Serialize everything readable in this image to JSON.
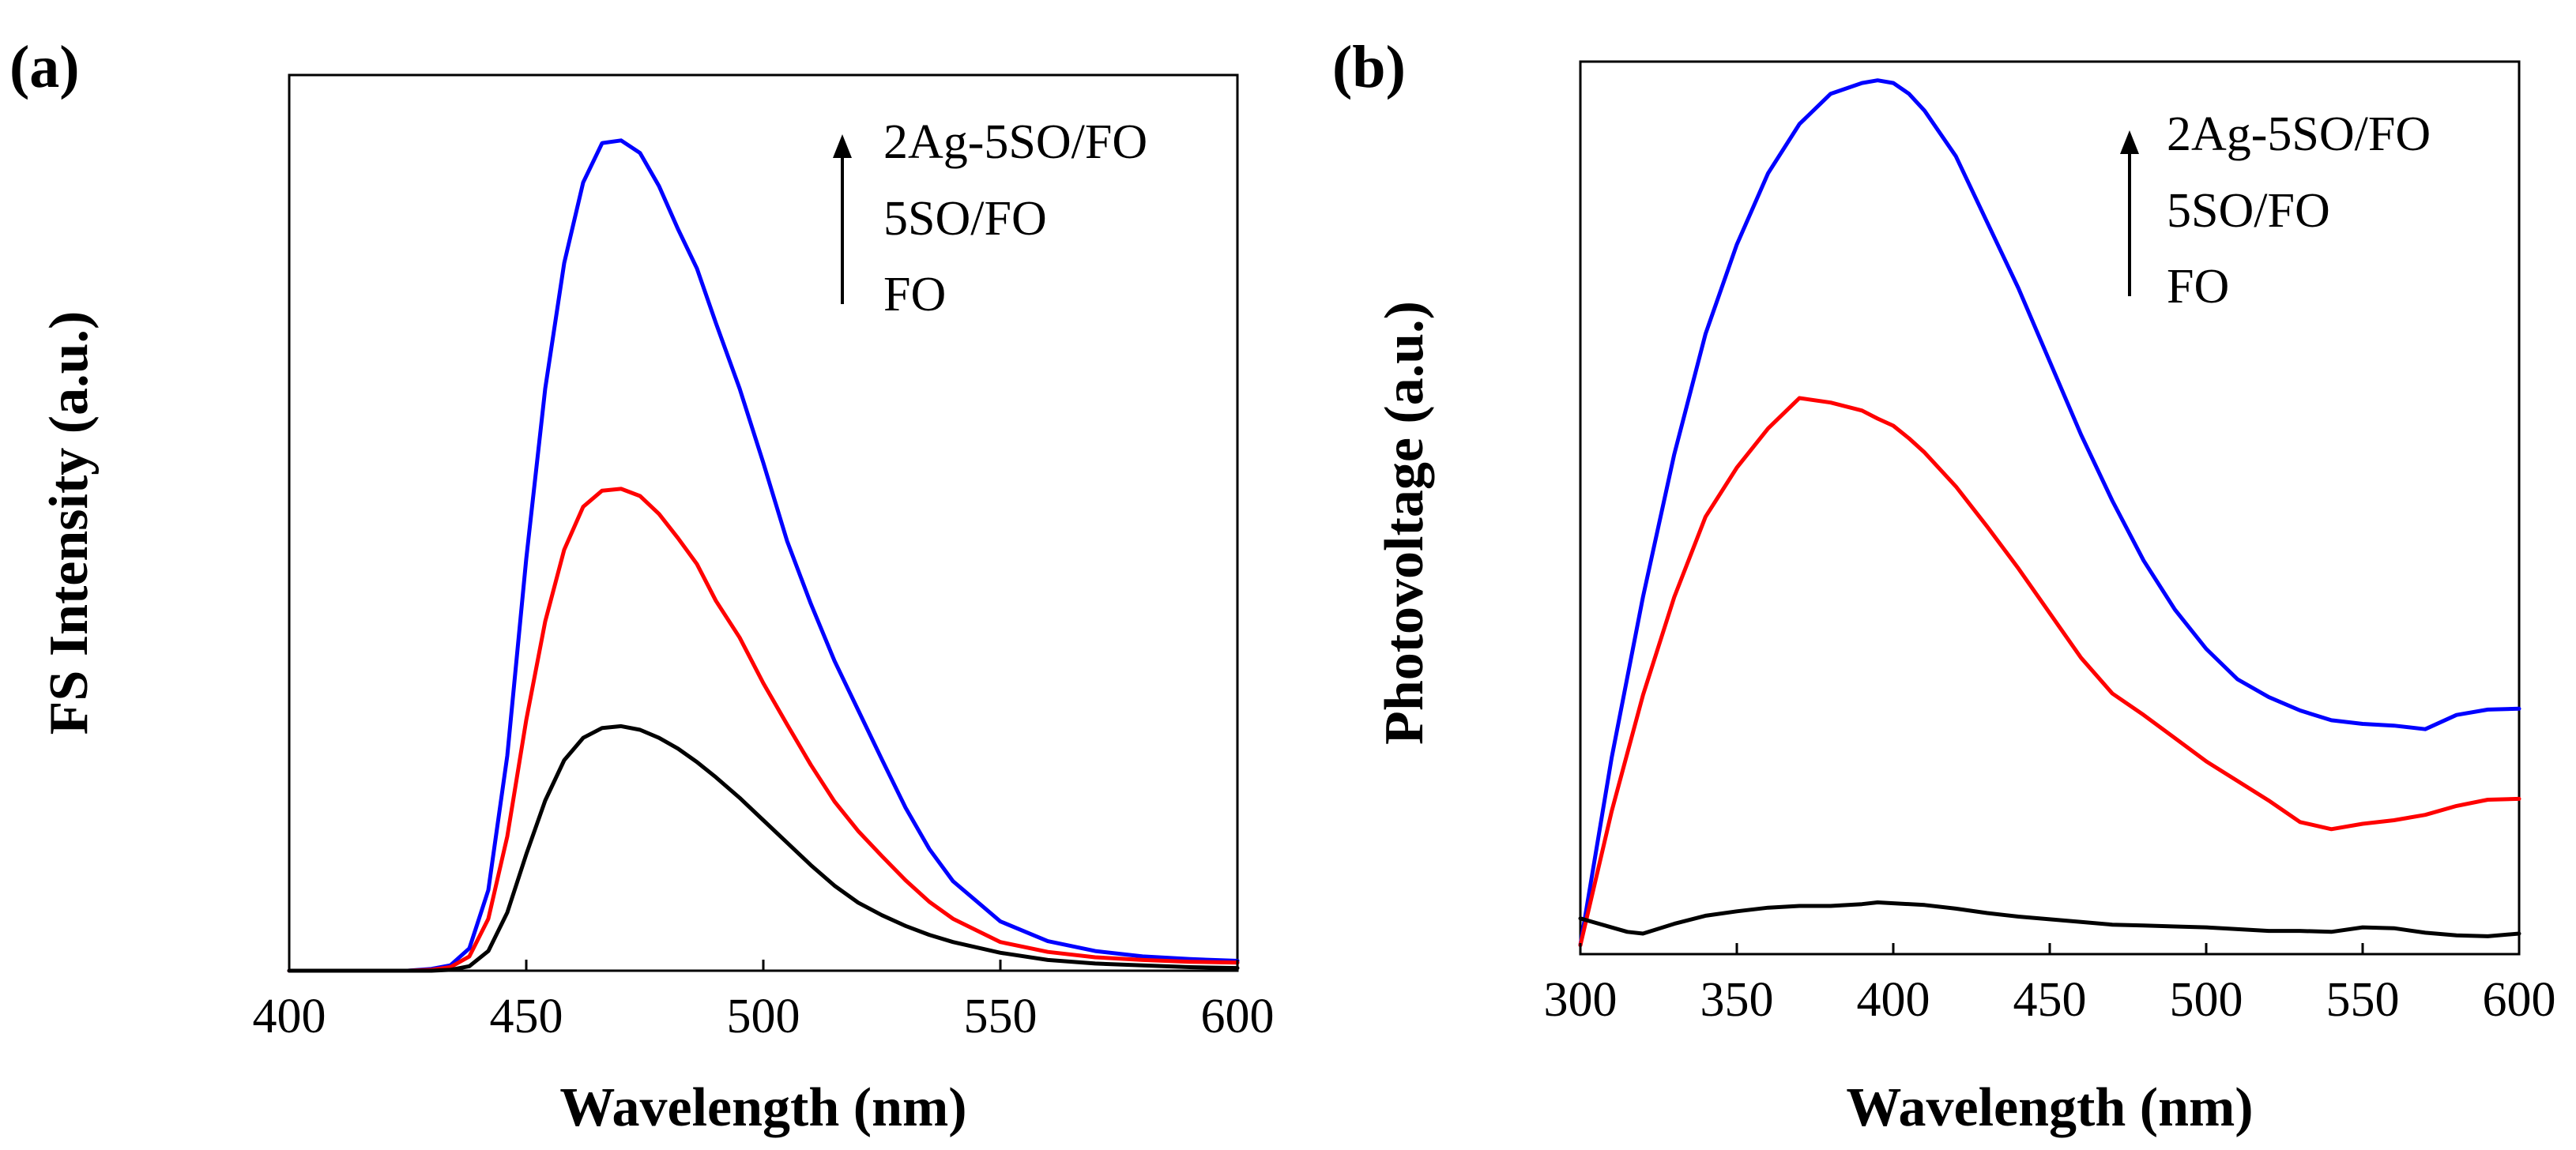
{
  "chart_data": [
    {
      "type": "line",
      "panel_label": "(a)",
      "xlabel": "Wavelength (nm)",
      "ylabel": "FS Intensity (a.u.)",
      "xlim": [
        400,
        600
      ],
      "ylim": [
        0,
        100
      ],
      "xticks": [
        "400",
        "450",
        "500",
        "550",
        "600"
      ],
      "legend_placement": "top-right",
      "legend_arrow": true,
      "legend": [
        "2Ag-5SO/FO",
        "5SO/FO",
        "FO"
      ],
      "series": [
        {
          "name": "2Ag-5SO/FO",
          "color": "#0000ff",
          "x": [
            400,
            425,
            430,
            434,
            438,
            442,
            446,
            450,
            454,
            458,
            462,
            466,
            470,
            474,
            478,
            482,
            486,
            490,
            495,
            500,
            505,
            510,
            515,
            520,
            525,
            530,
            535,
            540,
            550,
            560,
            570,
            580,
            590,
            600
          ],
          "y": [
            0,
            0,
            0.2,
            0.6,
            2.5,
            9,
            24,
            46,
            65,
            79,
            88,
            92.4,
            92.7,
            91.3,
            87.6,
            82.8,
            78.4,
            72.3,
            65,
            56.7,
            48,
            41,
            34.6,
            29.1,
            23.6,
            18.2,
            13.6,
            10,
            5.5,
            3.3,
            2.2,
            1.6,
            1.3,
            1.1
          ]
        },
        {
          "name": "5SO/FO",
          "color": "#ff0000",
          "x": [
            400,
            425,
            430,
            434,
            438,
            442,
            446,
            450,
            454,
            458,
            462,
            466,
            470,
            474,
            478,
            482,
            486,
            490,
            495,
            500,
            505,
            510,
            515,
            520,
            525,
            530,
            535,
            540,
            550,
            560,
            570,
            580,
            590,
            600
          ],
          "y": [
            0,
            0,
            0.1,
            0.4,
            1.6,
            5.8,
            15,
            28,
            39,
            47,
            51.8,
            53.6,
            53.8,
            53,
            51,
            48.3,
            45.4,
            41.3,
            37.2,
            32.1,
            27.5,
            23,
            18.9,
            15.6,
            12.8,
            10.1,
            7.7,
            5.8,
            3.2,
            2.1,
            1.5,
            1.2,
            1,
            0.9
          ]
        },
        {
          "name": "FO",
          "color": "#000000",
          "x": [
            400,
            425,
            430,
            434,
            438,
            442,
            446,
            450,
            454,
            458,
            462,
            466,
            470,
            474,
            478,
            482,
            486,
            490,
            495,
            500,
            505,
            510,
            515,
            520,
            525,
            530,
            535,
            540,
            550,
            560,
            570,
            580,
            590,
            600
          ],
          "y": [
            0,
            0,
            0,
            0.1,
            0.5,
            2.2,
            6.5,
            13,
            19,
            23.5,
            26,
            27.1,
            27.3,
            26.9,
            26,
            24.8,
            23.3,
            21.6,
            19.3,
            16.8,
            14.3,
            11.8,
            9.5,
            7.6,
            6.2,
            5,
            4,
            3.2,
            2,
            1.2,
            0.8,
            0.6,
            0.4,
            0.3
          ]
        }
      ]
    },
    {
      "type": "line",
      "panel_label": "(b)",
      "xlabel": "Wavelength (nm)",
      "ylabel": "Photovoltage (a.u.)",
      "xlim": [
        300,
        600
      ],
      "ylim": [
        0,
        100
      ],
      "xticks": [
        "300",
        "350",
        "400",
        "450",
        "500",
        "550",
        "600"
      ],
      "legend_placement": "top-right",
      "legend_arrow": true,
      "legend": [
        "2Ag-5SO/FO",
        "5SO/FO",
        "FO"
      ],
      "series": [
        {
          "name": "2Ag-5SO/FO",
          "color": "#0000ff",
          "x": [
            300,
            310,
            320,
            330,
            340,
            350,
            360,
            370,
            380,
            390,
            395,
            400,
            405,
            410,
            420,
            430,
            440,
            450,
            460,
            470,
            480,
            490,
            500,
            510,
            520,
            530,
            540,
            550,
            560,
            570,
            580,
            590,
            600
          ],
          "y": [
            1,
            22,
            40,
            56,
            69.5,
            79.5,
            87.5,
            93,
            96.4,
            97.6,
            97.9,
            97.6,
            96.4,
            94.5,
            89.4,
            82,
            74.6,
            66.4,
            58.2,
            50.8,
            44.1,
            38.6,
            34.2,
            30.8,
            28.8,
            27.3,
            26.2,
            25.8,
            25.6,
            25.2,
            26.8,
            27.4,
            27.5
          ]
        },
        {
          "name": "5SO/FO",
          "color": "#ff0000",
          "x": [
            300,
            310,
            320,
            330,
            340,
            350,
            360,
            370,
            380,
            390,
            395,
            400,
            405,
            410,
            420,
            430,
            440,
            450,
            460,
            470,
            480,
            490,
            500,
            510,
            520,
            530,
            540,
            550,
            560,
            570,
            580,
            590,
            600
          ],
          "y": [
            1,
            16,
            29,
            40,
            49,
            54.5,
            58.9,
            62.3,
            61.8,
            60.9,
            60,
            59.2,
            57.8,
            56.2,
            52.4,
            47.9,
            43.2,
            38.2,
            33.2,
            29.2,
            26.8,
            24.2,
            21.6,
            19.4,
            17.2,
            14.8,
            14,
            14.6,
            15,
            15.6,
            16.6,
            17.3,
            17.4
          ]
        },
        {
          "name": "FO",
          "color": "#000000",
          "x": [
            300,
            305,
            315,
            320,
            330,
            340,
            350,
            360,
            370,
            380,
            390,
            395,
            400,
            410,
            420,
            430,
            440,
            450,
            460,
            470,
            480,
            490,
            500,
            510,
            520,
            530,
            540,
            550,
            560,
            570,
            580,
            590,
            600
          ],
          "y": [
            4,
            3.5,
            2.5,
            2.3,
            3.4,
            4.3,
            4.8,
            5.2,
            5.4,
            5.4,
            5.6,
            5.8,
            5.7,
            5.5,
            5.1,
            4.6,
            4.2,
            3.9,
            3.6,
            3.3,
            3.2,
            3.1,
            3,
            2.8,
            2.6,
            2.6,
            2.5,
            3,
            2.9,
            2.4,
            2.1,
            2,
            2.3
          ]
        }
      ]
    }
  ]
}
